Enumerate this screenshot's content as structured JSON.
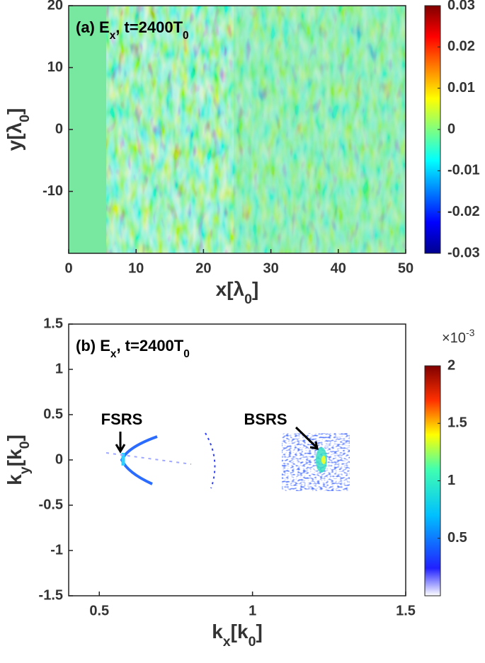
{
  "chart_data": [
    {
      "type": "heatmap",
      "title": [
        {
          "text": "(a) E"
        },
        {
          "text": "x",
          "sub": true
        },
        {
          "text": ", t=2400T"
        },
        {
          "text": "0",
          "sub": true
        }
      ],
      "x_label": [
        {
          "text": "x[λ"
        },
        {
          "text": "0",
          "sub": true
        },
        {
          "text": "]"
        }
      ],
      "y_label": [
        {
          "text": "y[λ"
        },
        {
          "text": "0",
          "sub": true
        },
        {
          "text": "]"
        }
      ],
      "xlim": [
        0,
        50
      ],
      "xticks": [
        0,
        10,
        20,
        30,
        40,
        50
      ],
      "ylim": [
        -20,
        20
      ],
      "yticks": [
        -10,
        0,
        10,
        20
      ],
      "colormap": "jet",
      "colorbar": {
        "lim": [
          -0.03,
          0.03
        ],
        "ticks": [
          -0.03,
          -0.02,
          -0.01,
          0,
          0.01,
          0.02,
          0.03
        ]
      }
    },
    {
      "type": "heatmap",
      "title": [
        {
          "text": "(b) E"
        },
        {
          "text": "x",
          "sub": true
        },
        {
          "text": ", t=2400T"
        },
        {
          "text": "0",
          "sub": true
        }
      ],
      "x_label": [
        {
          "text": "k"
        },
        {
          "text": "x",
          "sub": true
        },
        {
          "text": "[k"
        },
        {
          "text": "0",
          "sub": true
        },
        {
          "text": "]"
        }
      ],
      "y_label": [
        {
          "text": "k"
        },
        {
          "text": "y",
          "sub": true
        },
        {
          "text": "[k"
        },
        {
          "text": "0",
          "sub": true
        },
        {
          "text": "]"
        }
      ],
      "xlim": [
        0.4,
        1.5
      ],
      "xticks": [
        0.5,
        1,
        1.5
      ],
      "ylim": [
        -1.5,
        1.5
      ],
      "yticks": [
        -1.5,
        -1,
        -0.5,
        0,
        0.5,
        1,
        1.5
      ],
      "colormap": "jet-white",
      "colorbar": {
        "lim": [
          0,
          2
        ],
        "ticks": [
          0.5,
          1,
          1.5,
          2
        ],
        "multiplier": [
          {
            "text": "×10"
          },
          {
            "text": "-3",
            "sup": true
          }
        ]
      },
      "annotations": [
        {
          "text": "FSRS"
        },
        {
          "text": "BSRS"
        }
      ]
    }
  ]
}
